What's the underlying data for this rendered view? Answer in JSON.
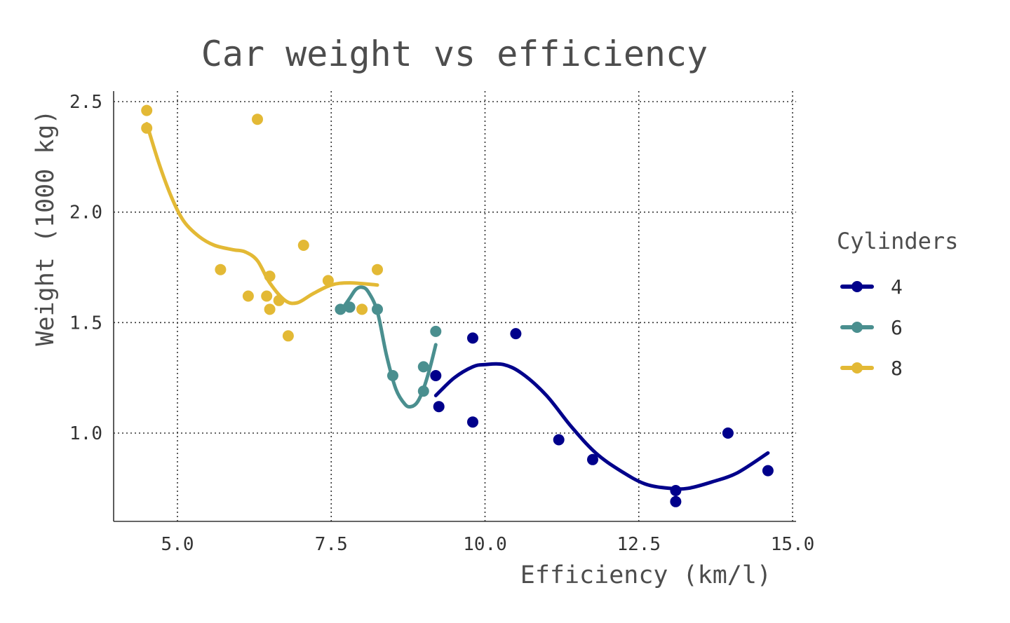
{
  "chart_data": {
    "type": "scatter",
    "title": "Car weight vs efficiency",
    "xlabel": "Efficiency (km/l)",
    "ylabel": "Weight (1000 kg)",
    "xlim": [
      4.0,
      15.0
    ],
    "ylim": [
      0.6,
      2.55
    ],
    "xticks": [
      5.0,
      7.5,
      10.0,
      12.5,
      15.0
    ],
    "xtick_labels": [
      "5.0",
      "7.5",
      "10.0",
      "12.5",
      "15.0"
    ],
    "yticks": [
      1.0,
      1.5,
      2.0,
      2.5
    ],
    "ytick_labels": [
      "1.0",
      "1.5",
      "2.0",
      "2.5"
    ],
    "grid": true,
    "legend": {
      "title": "Cylinders",
      "placement": "right"
    },
    "series": [
      {
        "name": "4",
        "color": "#00008b",
        "points": [
          [
            9.2,
            1.26
          ],
          [
            9.25,
            1.12
          ],
          [
            9.8,
            1.43
          ],
          [
            9.8,
            1.05
          ],
          [
            10.5,
            1.45
          ],
          [
            11.2,
            0.97
          ],
          [
            11.75,
            0.88
          ],
          [
            13.1,
            0.74
          ],
          [
            13.1,
            0.69
          ],
          [
            13.95,
            1.0
          ],
          [
            14.6,
            0.83
          ]
        ],
        "trend": [
          [
            9.2,
            1.17
          ],
          [
            9.5,
            1.25
          ],
          [
            9.8,
            1.3
          ],
          [
            10.0,
            1.31
          ],
          [
            10.3,
            1.31
          ],
          [
            10.6,
            1.27
          ],
          [
            11.0,
            1.17
          ],
          [
            11.4,
            1.03
          ],
          [
            11.8,
            0.91
          ],
          [
            12.2,
            0.83
          ],
          [
            12.6,
            0.77
          ],
          [
            13.0,
            0.75
          ],
          [
            13.3,
            0.75
          ],
          [
            13.7,
            0.78
          ],
          [
            14.1,
            0.82
          ],
          [
            14.6,
            0.91
          ]
        ]
      },
      {
        "name": "6",
        "color": "#4a8f8f",
        "points": [
          [
            7.65,
            1.56
          ],
          [
            7.8,
            1.57
          ],
          [
            8.25,
            1.56
          ],
          [
            8.5,
            1.26
          ],
          [
            9.0,
            1.19
          ],
          [
            9.0,
            1.3
          ],
          [
            9.2,
            1.46
          ]
        ],
        "trend": [
          [
            7.65,
            1.55
          ],
          [
            7.8,
            1.61
          ],
          [
            7.9,
            1.65
          ],
          [
            8.0,
            1.66
          ],
          [
            8.1,
            1.64
          ],
          [
            8.25,
            1.55
          ],
          [
            8.4,
            1.35
          ],
          [
            8.55,
            1.2
          ],
          [
            8.7,
            1.13
          ],
          [
            8.8,
            1.12
          ],
          [
            8.9,
            1.14
          ],
          [
            9.0,
            1.2
          ],
          [
            9.1,
            1.29
          ],
          [
            9.2,
            1.4
          ]
        ]
      },
      {
        "name": "8",
        "color": "#e3b935",
        "points": [
          [
            4.5,
            2.46
          ],
          [
            4.5,
            2.38
          ],
          [
            5.7,
            1.74
          ],
          [
            6.15,
            1.62
          ],
          [
            6.3,
            2.42
          ],
          [
            6.45,
            1.62
          ],
          [
            6.5,
            1.56
          ],
          [
            6.5,
            1.71
          ],
          [
            6.65,
            1.6
          ],
          [
            6.8,
            1.44
          ],
          [
            7.05,
            1.85
          ],
          [
            7.45,
            1.69
          ],
          [
            8.0,
            1.56
          ],
          [
            8.25,
            1.74
          ]
        ],
        "trend": [
          [
            4.5,
            2.4
          ],
          [
            4.7,
            2.22
          ],
          [
            4.9,
            2.07
          ],
          [
            5.1,
            1.96
          ],
          [
            5.35,
            1.89
          ],
          [
            5.6,
            1.85
          ],
          [
            5.9,
            1.83
          ],
          [
            6.1,
            1.82
          ],
          [
            6.3,
            1.78
          ],
          [
            6.5,
            1.68
          ],
          [
            6.75,
            1.6
          ],
          [
            6.95,
            1.59
          ],
          [
            7.2,
            1.63
          ],
          [
            7.5,
            1.67
          ],
          [
            7.8,
            1.68
          ],
          [
            8.25,
            1.67
          ]
        ]
      }
    ]
  }
}
